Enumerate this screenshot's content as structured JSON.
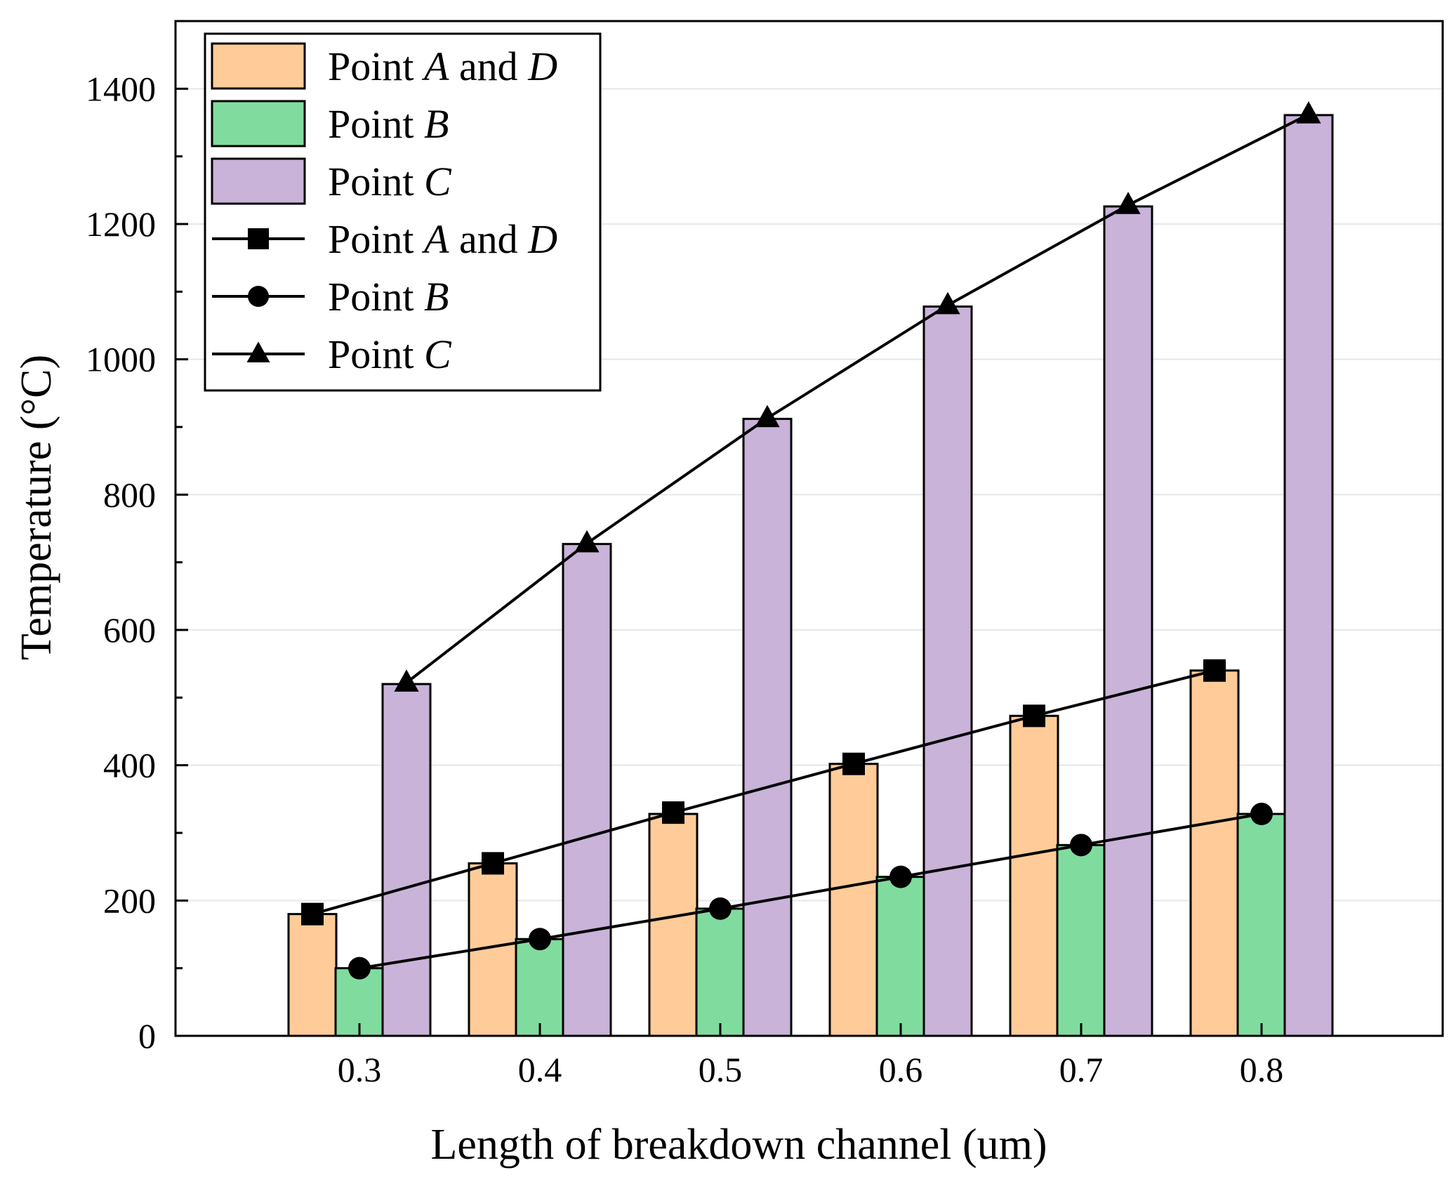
{
  "chart_data": {
    "type": "bar",
    "xlabel": "Length of breakdown channel (um)",
    "ylabel": "Temperature (°C)",
    "ylim": [
      0,
      1500
    ],
    "yticks": [
      0,
      200,
      400,
      600,
      800,
      1000,
      1200,
      1400
    ],
    "categories": [
      "0.3",
      "0.4",
      "0.5",
      "0.6",
      "0.7",
      "0.8"
    ],
    "grid": "horizontal light",
    "legend_position": "top-left",
    "series": [
      {
        "name": "Point A and D",
        "kind": "bar",
        "color": "#FFCC99",
        "values": [
          180,
          255,
          328,
          402,
          473,
          540
        ],
        "legend": [
          {
            "text": "Point "
          },
          {
            "text": "A",
            "italic": true
          },
          {
            "text": " and "
          },
          {
            "text": "D",
            "italic": true
          }
        ]
      },
      {
        "name": "Point B",
        "kind": "bar",
        "color": "#80DC9E",
        "values": [
          100,
          143,
          188,
          235,
          282,
          328
        ],
        "legend": [
          {
            "text": "Point "
          },
          {
            "text": "B",
            "italic": true
          }
        ]
      },
      {
        "name": "Point C",
        "kind": "bar",
        "color": "#C9B3D9",
        "values": [
          520,
          727,
          912,
          1078,
          1226,
          1361
        ],
        "legend": [
          {
            "text": "Point "
          },
          {
            "text": "C",
            "italic": true
          }
        ]
      },
      {
        "name": "Point A and D",
        "kind": "line",
        "marker": "square",
        "color": "#000000",
        "values": [
          180,
          255,
          330,
          402,
          473,
          540
        ],
        "legend": [
          {
            "text": "Point "
          },
          {
            "text": "A",
            "italic": true
          },
          {
            "text": " and "
          },
          {
            "text": "D",
            "italic": true
          }
        ]
      },
      {
        "name": "Point B",
        "kind": "line",
        "marker": "circle",
        "color": "#000000",
        "values": [
          100,
          143,
          188,
          235,
          282,
          328
        ],
        "legend": [
          {
            "text": "Point "
          },
          {
            "text": "B",
            "italic": true
          }
        ]
      },
      {
        "name": "Point C",
        "kind": "line",
        "marker": "triangle",
        "color": "#000000",
        "values": [
          522,
          728,
          913,
          1080,
          1228,
          1362
        ],
        "legend": [
          {
            "text": "Point "
          },
          {
            "text": "C",
            "italic": true
          }
        ]
      }
    ]
  }
}
